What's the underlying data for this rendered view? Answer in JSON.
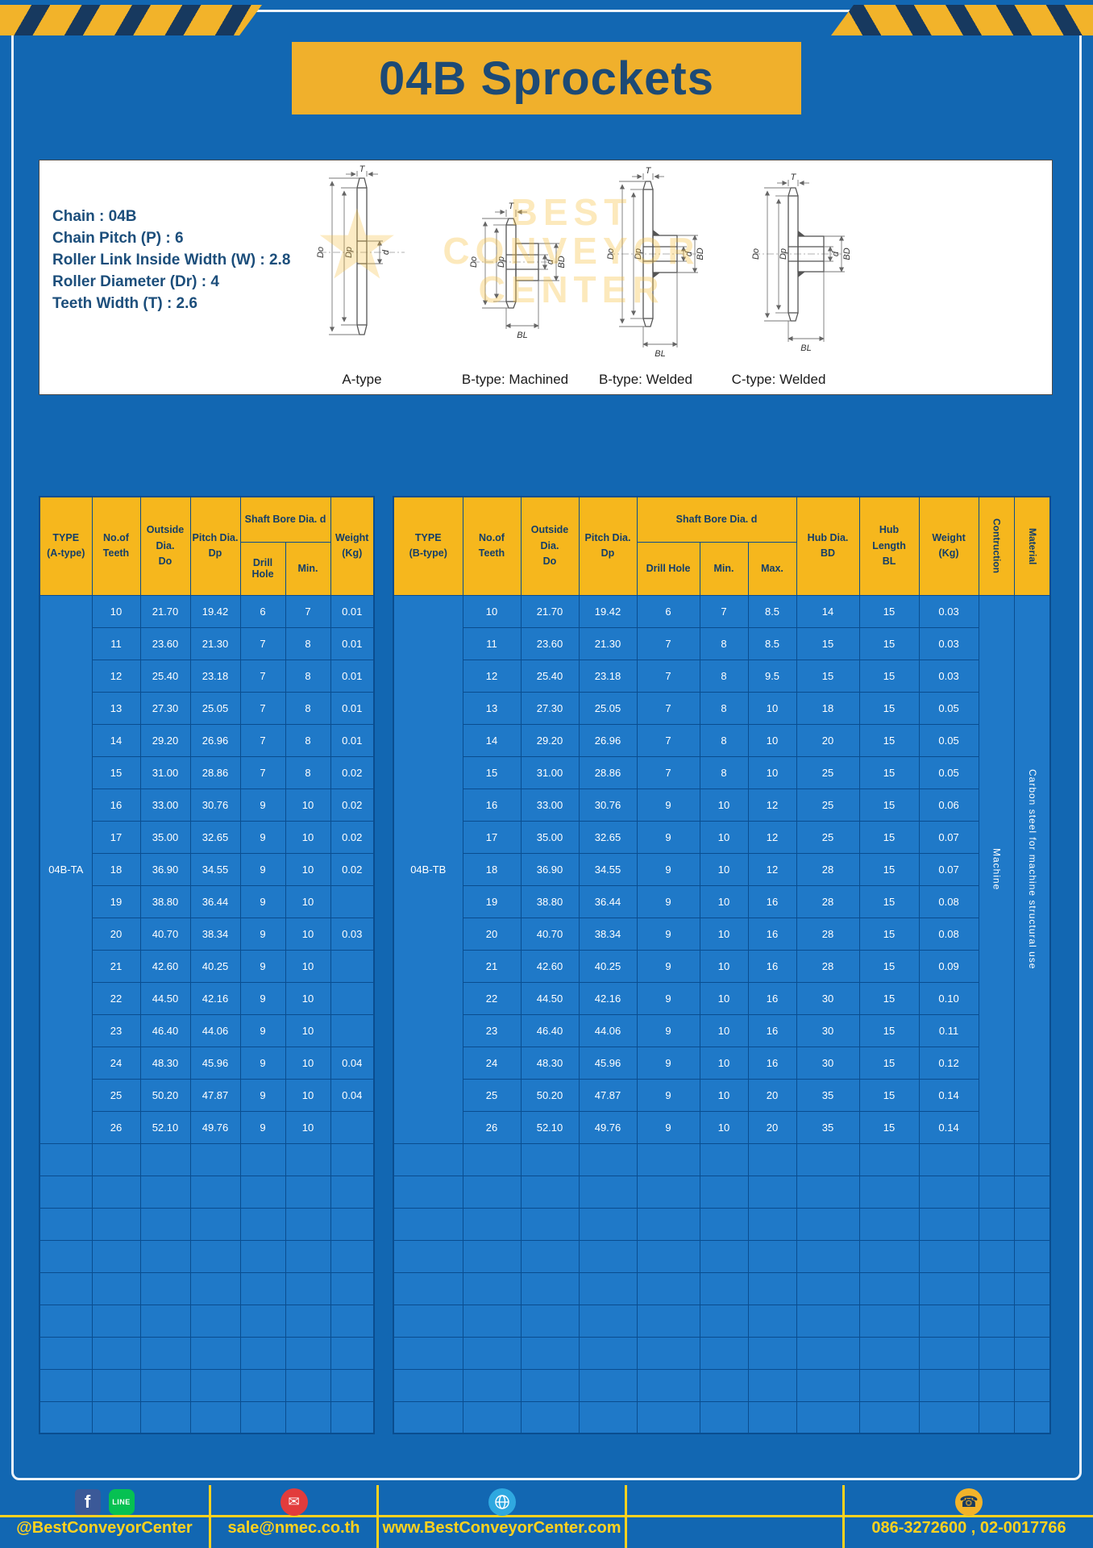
{
  "page": {
    "title": "04B Sprockets"
  },
  "specs": {
    "lines": [
      "Chain : 04B",
      "Chain Pitch (P) : 6",
      "Roller Link Inside Width (W) : 2.8",
      "Roller Diameter (Dr) : 4",
      "Teeth Width (T) : 2.6"
    ]
  },
  "diagrams": {
    "labels": [
      "A-type",
      "B-type: Machined",
      "B-type: Welded",
      "C-type: Welded"
    ],
    "dims": {
      "t": "T",
      "do": "Do",
      "dp": "Dp",
      "d": "d",
      "bd": "BD",
      "bl": "BL"
    },
    "watermark": [
      "BEST",
      "CONVEYOR",
      "CENTER"
    ],
    "watermark_star": "★"
  },
  "table_a": {
    "type_label": "04B-TA",
    "headers": {
      "type": [
        "TYPE",
        "(A-type)"
      ],
      "teeth": [
        "No.of",
        "Teeth"
      ],
      "outside": [
        "Outside",
        "Dia.",
        "Do"
      ],
      "pitch": [
        "Pitch Dia.",
        "Dp"
      ],
      "bore_group": "Shaft Bore Dia. d",
      "drill": "Drill Hole",
      "min": "Min.",
      "weight": [
        "Weight",
        "(Kg)"
      ]
    },
    "rows": [
      [
        "10",
        "21.70",
        "19.42",
        "6",
        "7",
        "0.01"
      ],
      [
        "11",
        "23.60",
        "21.30",
        "7",
        "8",
        "0.01"
      ],
      [
        "12",
        "25.40",
        "23.18",
        "7",
        "8",
        "0.01"
      ],
      [
        "13",
        "27.30",
        "25.05",
        "7",
        "8",
        "0.01"
      ],
      [
        "14",
        "29.20",
        "26.96",
        "7",
        "8",
        "0.01"
      ],
      [
        "15",
        "31.00",
        "28.86",
        "7",
        "8",
        "0.02"
      ],
      [
        "16",
        "33.00",
        "30.76",
        "9",
        "10",
        "0.02"
      ],
      [
        "17",
        "35.00",
        "32.65",
        "9",
        "10",
        "0.02"
      ],
      [
        "18",
        "36.90",
        "34.55",
        "9",
        "10",
        "0.02"
      ],
      [
        "19",
        "38.80",
        "36.44",
        "9",
        "10",
        ""
      ],
      [
        "20",
        "40.70",
        "38.34",
        "9",
        "10",
        "0.03"
      ],
      [
        "21",
        "42.60",
        "40.25",
        "9",
        "10",
        ""
      ],
      [
        "22",
        "44.50",
        "42.16",
        "9",
        "10",
        ""
      ],
      [
        "23",
        "46.40",
        "44.06",
        "9",
        "10",
        ""
      ],
      [
        "24",
        "48.30",
        "45.96",
        "9",
        "10",
        "0.04"
      ],
      [
        "25",
        "50.20",
        "47.87",
        "9",
        "10",
        "0.04"
      ],
      [
        "26",
        "52.10",
        "49.76",
        "9",
        "10",
        ""
      ]
    ],
    "empty_row_count": 9
  },
  "table_b": {
    "type_label": "04B-TB",
    "headers": {
      "type": [
        "TYPE",
        "(B-type)"
      ],
      "teeth": [
        "No.of",
        "Teeth"
      ],
      "outside": [
        "Outside",
        "Dia.",
        "Do"
      ],
      "pitch": [
        "Pitch Dia.",
        "Dp"
      ],
      "bore_group": "Shaft Bore Dia. d",
      "drill": "Drill Hole",
      "min": "Min.",
      "max": "Max.",
      "hub_dia": [
        "Hub Dia.",
        "BD"
      ],
      "hub_len": [
        "Hub",
        "Length",
        "BL"
      ],
      "weight": [
        "Weight",
        "(Kg)"
      ],
      "construction": "Contruction",
      "material": "Material"
    },
    "body_construction": "Machine",
    "body_material": "Carbon steel for machine structural use",
    "rows": [
      [
        "10",
        "21.70",
        "19.42",
        "6",
        "7",
        "8.5",
        "14",
        "15",
        "0.03"
      ],
      [
        "11",
        "23.60",
        "21.30",
        "7",
        "8",
        "8.5",
        "15",
        "15",
        "0.03"
      ],
      [
        "12",
        "25.40",
        "23.18",
        "7",
        "8",
        "9.5",
        "15",
        "15",
        "0.03"
      ],
      [
        "13",
        "27.30",
        "25.05",
        "7",
        "8",
        "10",
        "18",
        "15",
        "0.05"
      ],
      [
        "14",
        "29.20",
        "26.96",
        "7",
        "8",
        "10",
        "20",
        "15",
        "0.05"
      ],
      [
        "15",
        "31.00",
        "28.86",
        "7",
        "8",
        "10",
        "25",
        "15",
        "0.05"
      ],
      [
        "16",
        "33.00",
        "30.76",
        "9",
        "10",
        "12",
        "25",
        "15",
        "0.06"
      ],
      [
        "17",
        "35.00",
        "32.65",
        "9",
        "10",
        "12",
        "25",
        "15",
        "0.07"
      ],
      [
        "18",
        "36.90",
        "34.55",
        "9",
        "10",
        "12",
        "28",
        "15",
        "0.07"
      ],
      [
        "19",
        "38.80",
        "36.44",
        "9",
        "10",
        "16",
        "28",
        "15",
        "0.08"
      ],
      [
        "20",
        "40.70",
        "38.34",
        "9",
        "10",
        "16",
        "28",
        "15",
        "0.08"
      ],
      [
        "21",
        "42.60",
        "40.25",
        "9",
        "10",
        "16",
        "28",
        "15",
        "0.09"
      ],
      [
        "22",
        "44.50",
        "42.16",
        "9",
        "10",
        "16",
        "30",
        "15",
        "0.10"
      ],
      [
        "23",
        "46.40",
        "44.06",
        "9",
        "10",
        "16",
        "30",
        "15",
        "0.11"
      ],
      [
        "24",
        "48.30",
        "45.96",
        "9",
        "10",
        "16",
        "30",
        "15",
        "0.12"
      ],
      [
        "25",
        "50.20",
        "47.87",
        "9",
        "10",
        "20",
        "35",
        "15",
        "0.14"
      ],
      [
        "26",
        "52.10",
        "49.76",
        "9",
        "10",
        "20",
        "35",
        "15",
        "0.14"
      ]
    ],
    "empty_row_count": 9
  },
  "footer": {
    "facebook_glyph": "f",
    "line_text": "LINE",
    "email_glyph": "✉",
    "phone_glyph": "☎",
    "social_label": "@BestConveyorCenter",
    "email_label": "sale@nmec.co.th",
    "web_label": "www.BestConveyorCenter.com",
    "phone_label": "086-3272600 , 02-0017766"
  },
  "colors": {
    "accent_yellow": "#f2b32a",
    "page_blue": "#1267b2",
    "cell_blue": "#1f79c8",
    "grid_navy": "#0a4d8f",
    "dark_navy_text": "#143e68",
    "footer_yellow": "#ffd21e"
  }
}
